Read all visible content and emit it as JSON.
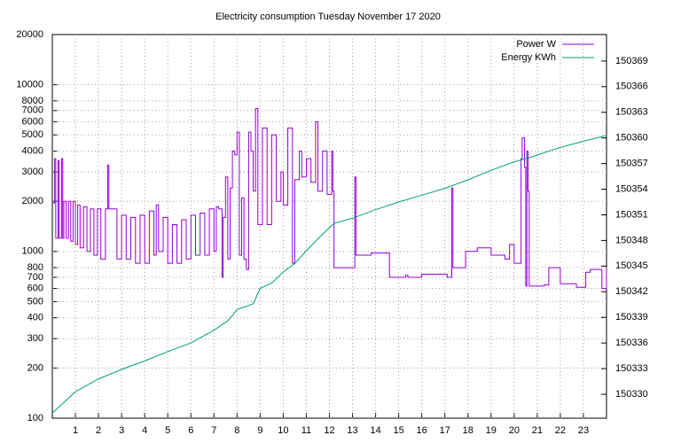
{
  "chart_data": {
    "type": "line",
    "title": "Electricity consumption Tuesday November 17 2020",
    "xlim": [
      0,
      24
    ],
    "xticks": [
      1,
      2,
      3,
      4,
      5,
      6,
      7,
      8,
      9,
      10,
      11,
      12,
      13,
      14,
      15,
      16,
      17,
      18,
      19,
      20,
      21,
      22,
      23
    ],
    "ylim": [
      100,
      20000
    ],
    "yscale": "log",
    "yticks": [
      100,
      200,
      300,
      400,
      500,
      600,
      700,
      800,
      1000,
      2000,
      3000,
      4000,
      5000,
      6000,
      7000,
      8000,
      10000,
      20000
    ],
    "y2lim": [
      150327.2,
      150372.1
    ],
    "y2ticks": [
      150330,
      150333,
      150336,
      150339,
      150342,
      150345,
      150348,
      150351,
      150354,
      150357,
      150360,
      150363,
      150366,
      150369
    ],
    "grid": true,
    "legend": "top-right",
    "series": [
      {
        "name": "Power W",
        "color": "#9400d3",
        "style": "steps",
        "x": [
          0,
          0.1,
          0.15,
          0.25,
          0.3,
          0.4,
          0.45,
          0.5,
          0.6,
          0.7,
          0.8,
          0.9,
          1.0,
          1.1,
          1.2,
          1.35,
          1.5,
          1.65,
          1.8,
          1.95,
          2.1,
          2.3,
          2.4,
          2.45,
          2.7,
          2.8,
          3.0,
          3.2,
          3.4,
          3.6,
          3.8,
          4.0,
          4.2,
          4.4,
          4.5,
          4.6,
          4.8,
          5.0,
          5.2,
          5.4,
          5.6,
          5.8,
          6.0,
          6.2,
          6.4,
          6.6,
          6.8,
          7.0,
          7.1,
          7.2,
          7.35,
          7.4,
          7.5,
          7.6,
          7.7,
          7.8,
          7.9,
          8.0,
          8.1,
          8.2,
          8.3,
          8.4,
          8.5,
          8.6,
          8.7,
          8.8,
          8.9,
          9.1,
          9.3,
          9.5,
          9.7,
          9.9,
          10.0,
          10.2,
          10.4,
          10.5,
          10.7,
          10.8,
          11.0,
          11.2,
          11.4,
          11.5,
          11.7,
          11.9,
          12.1,
          12.15,
          12.2,
          13.1,
          13.15,
          13.7,
          13.8,
          14.5,
          14.6,
          15.3,
          15.4,
          15.5,
          16.0,
          16.9,
          17.1,
          17.3,
          17.35,
          17.6,
          17.9,
          18.4,
          18.9,
          19.0,
          19.5,
          19.6,
          19.8,
          20.0,
          20.3,
          20.35,
          20.45,
          20.5,
          20.55,
          20.6,
          20.65,
          21.3,
          21.5,
          21.9,
          22.0,
          22.6,
          22.7,
          23.0,
          23.1,
          23.3,
          23.7,
          23.8,
          24.0
        ],
        "values": [
          1950,
          3600,
          1200,
          3500,
          1200,
          3600,
          1200,
          2000,
          1200,
          2000,
          1150,
          2000,
          1100,
          1900,
          1050,
          1850,
          1000,
          1800,
          950,
          1800,
          900,
          1800,
          3300,
          1800,
          1800,
          900,
          1650,
          900,
          1600,
          850,
          1650,
          850,
          1750,
          950,
          1900,
          1000,
          1600,
          850,
          1450,
          850,
          1550,
          900,
          1650,
          950,
          1700,
          950,
          1800,
          1000,
          1850,
          1800,
          700,
          1600,
          2800,
          900,
          2400,
          4000,
          3800,
          5200,
          950,
          2100,
          900,
          780,
          5200,
          4000,
          2300,
          7200,
          1450,
          5500,
          1450,
          5000,
          2000,
          3000,
          1900,
          5500,
          850,
          2700,
          4000,
          2800,
          3600,
          2600,
          6000,
          2300,
          4000,
          2200,
          4000,
          2300,
          800,
          2800,
          950,
          950,
          980,
          980,
          700,
          720,
          700,
          700,
          730,
          730,
          700,
          2400,
          800,
          800,
          1000,
          1050,
          1050,
          950,
          950,
          900,
          1100,
          850,
          3600,
          4800,
          3200,
          620,
          4000,
          2300,
          620,
          630,
          800,
          800,
          640,
          640,
          610,
          610,
          750,
          780,
          780,
          600,
          800
        ]
      },
      {
        "name": "Energy KWh",
        "color": "#009e73",
        "axis": "y2",
        "x": [
          0,
          1,
          2,
          3,
          4,
          5,
          6,
          7,
          7.6,
          8,
          8.7,
          9,
          9.5,
          10,
          10.5,
          11,
          11.5,
          12,
          12.2,
          13,
          14,
          15,
          16,
          17,
          18,
          19,
          20,
          20.8,
          21,
          22,
          23,
          24
        ],
        "values": [
          150327.8,
          150330.3,
          150331.8,
          150332.9,
          150333.9,
          150335,
          150336,
          150337.5,
          150338.6,
          150339.9,
          150340.6,
          150342.4,
          150343,
          150344.3,
          150345.3,
          150346.8,
          150348.2,
          150349.5,
          150350,
          150350.6,
          150351.6,
          150352.5,
          150353.3,
          150354.1,
          150355.1,
          150356.2,
          150357.2,
          150357.8,
          150358,
          150358.9,
          150359.6,
          150360.3
        ]
      }
    ]
  }
}
